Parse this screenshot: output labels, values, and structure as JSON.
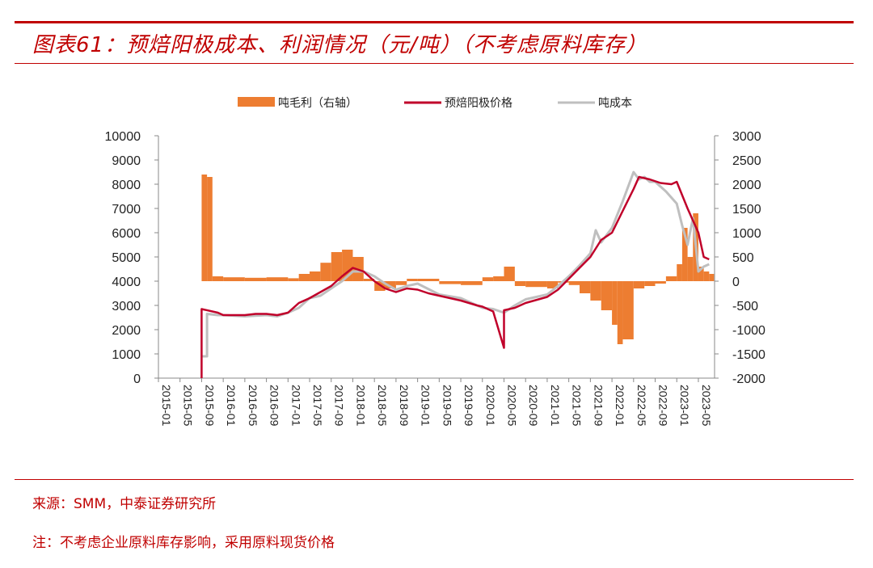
{
  "header": {
    "title": "图表61：预焙阳极成本、利润情况（元/吨）（不考虑原料库存）"
  },
  "footer": {
    "source": "来源：SMM，中泰证券研究所",
    "note": "注：不考虑企业原料库存影响，采用原料现货价格"
  },
  "colors": {
    "accent": "#c00000",
    "margin_bar": "#ed7d31",
    "anode_price": "#c0002a",
    "cost": "#bfbfbf"
  },
  "chart_data": {
    "type": "bar+line",
    "legend_placement": "top-center",
    "grid": false,
    "x_ticks": [
      "2015-01",
      "2015-05",
      "2015-09",
      "2016-01",
      "2016-05",
      "2016-09",
      "2017-01",
      "2017-05",
      "2017-09",
      "2018-01",
      "2018-05",
      "2018-09",
      "2019-01",
      "2019-05",
      "2019-09",
      "2020-01",
      "2020-05",
      "2020-09",
      "2021-01",
      "2021-05",
      "2021-09",
      "2022-01",
      "2022-05",
      "2022-09",
      "2023-01",
      "2023-05"
    ],
    "y_left": {
      "min": 0,
      "max": 10000,
      "ticks": [
        "0",
        "1000",
        "2000",
        "3000",
        "4000",
        "5000",
        "6000",
        "7000",
        "8000",
        "9000",
        "10000"
      ]
    },
    "y_right": {
      "min": -2000,
      "max": 3000,
      "ticks": [
        "-2000",
        "-1500",
        "-1000",
        "-500",
        "0",
        "500",
        "1000",
        "1500",
        "2000",
        "2500",
        "3000"
      ]
    },
    "series": [
      {
        "name": "吨毛利（右轴）",
        "kind": "bar",
        "axis": "right",
        "x": [
          "2015-09",
          "2015-10",
          "2015-11",
          "2016-01",
          "2016-05",
          "2016-09",
          "2017-01",
          "2017-03",
          "2017-05",
          "2017-07",
          "2017-09",
          "2017-11",
          "2018-01",
          "2018-03",
          "2018-05",
          "2018-07",
          "2018-09",
          "2018-11",
          "2019-01",
          "2019-05",
          "2019-09",
          "2020-01",
          "2020-03",
          "2020-05",
          "2020-07",
          "2020-09",
          "2021-01",
          "2021-03",
          "2021-05",
          "2021-07",
          "2021-09",
          "2021-11",
          "2022-01",
          "2022-02",
          "2022-03",
          "2022-05",
          "2022-07",
          "2022-09",
          "2022-11",
          "2023-01",
          "2023-02",
          "2023-03",
          "2023-04",
          "2023-05",
          "2023-06",
          "2023-07"
        ],
        "values": [
          2200,
          2150,
          100,
          80,
          70,
          80,
          60,
          150,
          200,
          380,
          600,
          650,
          500,
          50,
          -200,
          -150,
          -80,
          50,
          50,
          -60,
          -80,
          80,
          100,
          300,
          -100,
          -120,
          -150,
          -30,
          -80,
          -250,
          -400,
          -600,
          -900,
          -1300,
          -1200,
          -150,
          -100,
          -50,
          100,
          350,
          1100,
          500,
          1400,
          300,
          200,
          150
        ]
      },
      {
        "name": "预焙阳极价格",
        "kind": "line",
        "axis": "left",
        "x": [
          "2015-09",
          "2015-09",
          "2015-12",
          "2016-01",
          "2016-05",
          "2016-07",
          "2016-09",
          "2016-11",
          "2017-01",
          "2017-03",
          "2017-05",
          "2017-07",
          "2017-09",
          "2017-11",
          "2018-01",
          "2018-03",
          "2018-05",
          "2018-07",
          "2018-09",
          "2018-11",
          "2019-01",
          "2019-03",
          "2019-05",
          "2019-09",
          "2019-12",
          "2020-01",
          "2020-03",
          "2020-05",
          "2020-05",
          "2020-07",
          "2020-09",
          "2021-01",
          "2021-03",
          "2021-05",
          "2021-07",
          "2021-09",
          "2021-11",
          "2022-01",
          "2022-03",
          "2022-05",
          "2022-06",
          "2022-08",
          "2022-10",
          "2022-12",
          "2023-01",
          "2023-03",
          "2023-05",
          "2023-06",
          "2023-07"
        ],
        "values": [
          0,
          2850,
          2700,
          2600,
          2600,
          2650,
          2650,
          2600,
          2700,
          3100,
          3300,
          3550,
          3800,
          4200,
          4550,
          4400,
          4000,
          3700,
          3550,
          3700,
          3650,
          3500,
          3400,
          3200,
          3000,
          2950,
          2750,
          1250,
          2800,
          2900,
          3100,
          3350,
          3650,
          4100,
          4550,
          5000,
          5700,
          6000,
          6900,
          7800,
          8300,
          8200,
          8050,
          8000,
          8100,
          7000,
          6000,
          5000,
          4900
        ]
      },
      {
        "name": "吨成本",
        "kind": "line",
        "axis": "left",
        "x": [
          "2015-09",
          "2015-10",
          "2015-10",
          "2015-12",
          "2016-01",
          "2016-05",
          "2016-09",
          "2016-11",
          "2017-01",
          "2017-03",
          "2017-05",
          "2017-07",
          "2017-09",
          "2017-11",
          "2018-01",
          "2018-03",
          "2018-05",
          "2018-07",
          "2018-09",
          "2018-11",
          "2019-01",
          "2019-05",
          "2019-09",
          "2020-01",
          "2020-03",
          "2020-05",
          "2020-07",
          "2020-09",
          "2021-01",
          "2021-03",
          "2021-05",
          "2021-07",
          "2021-09",
          "2021-10",
          "2021-11",
          "2022-01",
          "2022-03",
          "2022-05",
          "2022-06",
          "2022-07",
          "2022-08",
          "2022-09",
          "2022-11",
          "2023-01",
          "2023-02",
          "2023-03",
          "2023-04",
          "2023-05",
          "2023-06",
          "2023-07"
        ],
        "values": [
          900,
          900,
          2650,
          2600,
          2600,
          2550,
          2600,
          2550,
          2700,
          2900,
          3300,
          3400,
          3700,
          4000,
          4400,
          4400,
          4200,
          3900,
          3650,
          3800,
          3900,
          3450,
          3300,
          2900,
          2850,
          2700,
          3000,
          3250,
          3450,
          3800,
          4200,
          4650,
          5150,
          6100,
          5600,
          6200,
          7300,
          8500,
          8200,
          8300,
          8100,
          8100,
          7700,
          7200,
          6300,
          5500,
          6600,
          4400,
          4600,
          4700
        ]
      }
    ]
  }
}
